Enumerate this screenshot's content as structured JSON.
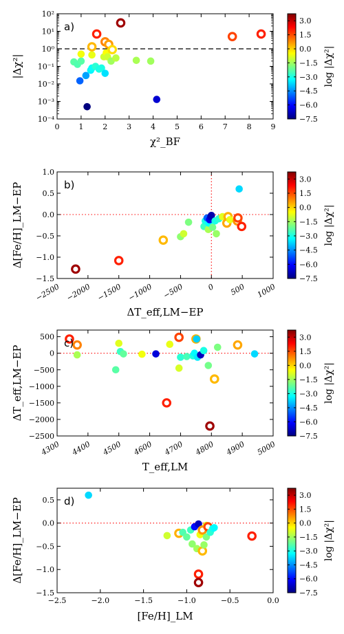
{
  "colorbar": {
    "ticks": [
      "3.0",
      "1.5",
      "0.0",
      "−1.5",
      "−3.0",
      "−4.5",
      "−6.0",
      "−7.5"
    ],
    "range": [
      -7.5,
      3.75
    ],
    "colors": [
      "#00007f",
      "#0000ff",
      "#007fff",
      "#00ffff",
      "#7fff7f",
      "#ffff00",
      "#ff7f00",
      "#ff0000",
      "#7f0000"
    ]
  },
  "chart_data": [
    {
      "type": "scatter",
      "panel_label": "a)",
      "xlabel": "χ²_BF",
      "ylabel": "|Δχ²|",
      "cbar_label": "log |Δχ²|",
      "xlim": [
        0,
        9
      ],
      "ylim_log10": [
        -4,
        2
      ],
      "yscale": "log",
      "xticks": [
        "0",
        "1",
        "2",
        "3",
        "4",
        "5",
        "6",
        "7",
        "8",
        "9"
      ],
      "yticks": [
        "10⁻⁴",
        "10⁻³",
        "10⁻²",
        "10⁻¹",
        "10⁰",
        "10¹",
        "10²"
      ],
      "reference_lines": [
        {
          "orientation": "horizontal",
          "value": 1,
          "style": "dashed",
          "color": "#000000"
        }
      ],
      "points": [
        {
          "x": 0.7,
          "y": 0.18,
          "c": -2.3,
          "ring": false
        },
        {
          "x": 0.85,
          "y": 0.13,
          "c": -2.4,
          "ring": false
        },
        {
          "x": 0.95,
          "y": 0.015,
          "c": -5.0,
          "ring": false
        },
        {
          "x": 1.0,
          "y": 0.2,
          "c": -2.3,
          "ring": false
        },
        {
          "x": 1.0,
          "y": 0.5,
          "c": -0.6,
          "ring": false
        },
        {
          "x": 1.2,
          "y": 0.03,
          "c": -4.3,
          "ring": false
        },
        {
          "x": 1.25,
          "y": 0.0005,
          "c": -7.5,
          "ring": false
        },
        {
          "x": 1.4,
          "y": 0.06,
          "c": -3.4,
          "ring": false
        },
        {
          "x": 1.45,
          "y": 0.08,
          "c": -3.2,
          "ring": false
        },
        {
          "x": 1.45,
          "y": 0.45,
          "c": -0.7,
          "ring": false
        },
        {
          "x": 1.45,
          "y": 1.3,
          "c": 0.3,
          "ring": true
        },
        {
          "x": 1.6,
          "y": 0.1,
          "c": -2.8,
          "ring": false
        },
        {
          "x": 1.65,
          "y": 7.0,
          "c": 2.0,
          "ring": true
        },
        {
          "x": 1.75,
          "y": 0.07,
          "c": -3.0,
          "ring": false
        },
        {
          "x": 1.85,
          "y": 0.08,
          "c": -3.0,
          "ring": false
        },
        {
          "x": 1.95,
          "y": 0.35,
          "c": -1.0,
          "ring": false
        },
        {
          "x": 2.0,
          "y": 0.04,
          "c": -3.6,
          "ring": false
        },
        {
          "x": 2.0,
          "y": 2.5,
          "c": 0.9,
          "ring": true
        },
        {
          "x": 2.05,
          "y": 0.6,
          "c": -0.5,
          "ring": false
        },
        {
          "x": 2.1,
          "y": 0.35,
          "c": -1.0,
          "ring": false
        },
        {
          "x": 2.15,
          "y": 1.8,
          "c": 0.6,
          "ring": true
        },
        {
          "x": 2.25,
          "y": 0.2,
          "c": -1.5,
          "ring": false
        },
        {
          "x": 2.3,
          "y": 0.9,
          "c": -0.1,
          "ring": true
        },
        {
          "x": 2.45,
          "y": 0.3,
          "c": -1.2,
          "ring": false
        },
        {
          "x": 2.65,
          "y": 30.0,
          "c": 3.4,
          "ring": true
        },
        {
          "x": 3.3,
          "y": 0.22,
          "c": -1.4,
          "ring": false
        },
        {
          "x": 3.9,
          "y": 0.2,
          "c": -1.5,
          "ring": false
        },
        {
          "x": 4.15,
          "y": 0.0013,
          "c": -6.6,
          "ring": false
        },
        {
          "x": 7.3,
          "y": 5.0,
          "c": 1.6,
          "ring": true
        },
        {
          "x": 8.5,
          "y": 7.0,
          "c": 2.0,
          "ring": true
        }
      ]
    },
    {
      "type": "scatter",
      "panel_label": "b)",
      "xlabel": "ΔT_eff,LM−EP",
      "ylabel": "Δ[Fe/H]_LM−EP",
      "cbar_label": "log |Δχ²|",
      "xlim": [
        -2500,
        1000
      ],
      "ylim": [
        -1.5,
        1.0
      ],
      "xticks": [
        "−2500",
        "−2000",
        "−1500",
        "−1000",
        "−500",
        "0",
        "500",
        "1000"
      ],
      "yticks": [
        "−1.5",
        "−1.0",
        "−0.5",
        "0.0",
        "0.5",
        "1.0"
      ],
      "reference_lines": [
        {
          "orientation": "horizontal",
          "value": 0,
          "style": "dotted",
          "color": "#ff0000"
        },
        {
          "orientation": "vertical",
          "value": 0,
          "style": "dotted",
          "color": "#ff0000"
        }
      ],
      "points": [
        {
          "x": -2200,
          "y": -1.28,
          "c": 3.4,
          "ring": true
        },
        {
          "x": -1500,
          "y": -1.08,
          "c": 2.0,
          "ring": true
        },
        {
          "x": -780,
          "y": -0.6,
          "c": 0.3,
          "ring": true
        },
        {
          "x": -500,
          "y": -0.52,
          "c": -1.7,
          "ring": false
        },
        {
          "x": -450,
          "y": -0.45,
          "c": -1.0,
          "ring": false
        },
        {
          "x": -370,
          "y": -0.18,
          "c": -1.9,
          "ring": false
        },
        {
          "x": -120,
          "y": -0.28,
          "c": -2.6,
          "ring": false
        },
        {
          "x": -100,
          "y": -0.15,
          "c": -3.0,
          "ring": false
        },
        {
          "x": -70,
          "y": -0.08,
          "c": -5.0,
          "ring": false
        },
        {
          "x": -50,
          "y": -0.35,
          "c": -1.4,
          "ring": false
        },
        {
          "x": -40,
          "y": -0.2,
          "c": -3.3,
          "ring": false
        },
        {
          "x": -30,
          "y": -0.12,
          "c": -6.3,
          "ring": false
        },
        {
          "x": -10,
          "y": -0.05,
          "c": -6.8,
          "ring": false
        },
        {
          "x": 0,
          "y": -0.02,
          "c": -7.0,
          "ring": false
        },
        {
          "x": 20,
          "y": -0.3,
          "c": -2.0,
          "ring": false
        },
        {
          "x": 60,
          "y": -0.15,
          "c": -3.0,
          "ring": false
        },
        {
          "x": 80,
          "y": -0.45,
          "c": -1.6,
          "ring": false
        },
        {
          "x": 120,
          "y": -0.1,
          "c": -2.8,
          "ring": false
        },
        {
          "x": 180,
          "y": -0.05,
          "c": -0.8,
          "ring": false
        },
        {
          "x": 250,
          "y": -0.2,
          "c": 0.5,
          "ring": true
        },
        {
          "x": 270,
          "y": -0.05,
          "c": 0.4,
          "ring": true
        },
        {
          "x": 300,
          "y": -0.12,
          "c": -0.7,
          "ring": false
        },
        {
          "x": 420,
          "y": -0.15,
          "c": 0.7,
          "ring": true
        },
        {
          "x": 430,
          "y": -0.08,
          "c": 1.6,
          "ring": true
        },
        {
          "x": 450,
          "y": 0.6,
          "c": -3.7,
          "ring": false
        },
        {
          "x": 490,
          "y": -0.28,
          "c": 2.0,
          "ring": true
        }
      ]
    },
    {
      "type": "scatter",
      "panel_label": "c)",
      "xlabel": "T_eff,LM",
      "ylabel": "ΔT_eff,LM−EP",
      "cbar_label": "log |Δχ²|",
      "xlim": [
        4300,
        5000
      ],
      "ylim": [
        -2500,
        700
      ],
      "xticks": [
        "4300",
        "4400",
        "4500",
        "4600",
        "4700",
        "4800",
        "4900",
        "5000"
      ],
      "yticks": [
        "−2500",
        "−2000",
        "−1500",
        "−1000",
        "−500",
        "0",
        "500"
      ],
      "reference_lines": [
        {
          "orientation": "horizontal",
          "value": 0,
          "style": "dotted",
          "color": "#ff0000"
        }
      ],
      "points": [
        {
          "x": 4340,
          "y": 430,
          "c": 2.0,
          "ring": true
        },
        {
          "x": 4365,
          "y": 250,
          "c": 0.9,
          "ring": true
        },
        {
          "x": 4365,
          "y": -50,
          "c": -1.4,
          "ring": false
        },
        {
          "x": 4490,
          "y": -500,
          "c": -2.3,
          "ring": false
        },
        {
          "x": 4500,
          "y": 300,
          "c": -0.8,
          "ring": false
        },
        {
          "x": 4505,
          "y": 50,
          "c": -2.6,
          "ring": false
        },
        {
          "x": 4515,
          "y": -20,
          "c": -2.2,
          "ring": false
        },
        {
          "x": 4575,
          "y": -30,
          "c": -0.6,
          "ring": false
        },
        {
          "x": 4620,
          "y": -20,
          "c": -6.5,
          "ring": false
        },
        {
          "x": 4655,
          "y": -1500,
          "c": 2.0,
          "ring": true
        },
        {
          "x": 4665,
          "y": 270,
          "c": -0.7,
          "ring": false
        },
        {
          "x": 4695,
          "y": 480,
          "c": 1.6,
          "ring": true
        },
        {
          "x": 4695,
          "y": -450,
          "c": -0.9,
          "ring": false
        },
        {
          "x": 4700,
          "y": -120,
          "c": -2.8,
          "ring": false
        },
        {
          "x": 4720,
          "y": -100,
          "c": -2.5,
          "ring": false
        },
        {
          "x": 4740,
          "y": -80,
          "c": -2.9,
          "ring": false
        },
        {
          "x": 4745,
          "y": 0,
          "c": -3.3,
          "ring": false
        },
        {
          "x": 4750,
          "y": 430,
          "c": 0.4,
          "ring": true
        },
        {
          "x": 4752,
          "y": 430,
          "c": -3.8,
          "ring": false
        },
        {
          "x": 4755,
          "y": -120,
          "c": -3.5,
          "ring": false
        },
        {
          "x": 4765,
          "y": -50,
          "c": -6.8,
          "ring": false
        },
        {
          "x": 4775,
          "y": 80,
          "c": -3.0,
          "ring": false
        },
        {
          "x": 4790,
          "y": -370,
          "c": -2.0,
          "ring": false
        },
        {
          "x": 4795,
          "y": -2200,
          "c": 3.4,
          "ring": true
        },
        {
          "x": 4810,
          "y": -780,
          "c": 0.3,
          "ring": true
        },
        {
          "x": 4820,
          "y": 180,
          "c": -1.9,
          "ring": false
        },
        {
          "x": 4885,
          "y": 250,
          "c": 0.5,
          "ring": true
        },
        {
          "x": 4940,
          "y": -20,
          "c": -3.7,
          "ring": false
        }
      ]
    },
    {
      "type": "scatter",
      "panel_label": "d)",
      "xlabel": "[Fe/H]_LM",
      "ylabel": "Δ[Fe/H]_LM−EP",
      "cbar_label": "log |Δχ²|",
      "xlim": [
        -2.5,
        0.25
      ],
      "ylim": [
        -1.5,
        0.75
      ],
      "xticks": [
        "−2.5",
        "−2.0",
        "−1.5",
        "−1.0",
        "−0.5",
        "0.0"
      ],
      "yticks": [
        "−1.5",
        "−1.0",
        "−0.5",
        "0.0",
        "0.5"
      ],
      "reference_lines": [
        {
          "orientation": "horizontal",
          "value": 0,
          "style": "dotted",
          "color": "#ff0000"
        }
      ],
      "points": [
        {
          "x": -2.1,
          "y": 0.6,
          "c": -3.7,
          "ring": false
        },
        {
          "x": -1.1,
          "y": -0.27,
          "c": -1.0,
          "ring": false
        },
        {
          "x": -0.95,
          "y": -0.22,
          "c": 0.4,
          "ring": true
        },
        {
          "x": -0.9,
          "y": -0.2,
          "c": -2.4,
          "ring": false
        },
        {
          "x": -0.85,
          "y": -0.3,
          "c": -2.2,
          "ring": false
        },
        {
          "x": -0.8,
          "y": -0.15,
          "c": -2.6,
          "ring": false
        },
        {
          "x": -0.78,
          "y": -0.45,
          "c": -1.7,
          "ring": false
        },
        {
          "x": -0.75,
          "y": -0.08,
          "c": -6.0,
          "ring": false
        },
        {
          "x": -0.72,
          "y": -0.55,
          "c": -1.5,
          "ring": false
        },
        {
          "x": -0.7,
          "y": -0.02,
          "c": -6.8,
          "ring": false
        },
        {
          "x": -0.7,
          "y": -1.1,
          "c": 2.0,
          "ring": true
        },
        {
          "x": -0.7,
          "y": -1.28,
          "c": 3.4,
          "ring": true
        },
        {
          "x": -0.68,
          "y": -0.25,
          "c": -0.6,
          "ring": false
        },
        {
          "x": -0.65,
          "y": -0.6,
          "c": 0.3,
          "ring": true
        },
        {
          "x": -0.65,
          "y": -0.15,
          "c": 0.7,
          "ring": true
        },
        {
          "x": -0.63,
          "y": -0.47,
          "c": -1.6,
          "ring": false
        },
        {
          "x": -0.6,
          "y": -0.3,
          "c": -1.9,
          "ring": false
        },
        {
          "x": -0.6,
          "y": -0.05,
          "c": -0.8,
          "ring": false
        },
        {
          "x": -0.58,
          "y": -0.08,
          "c": 1.6,
          "ring": true
        },
        {
          "x": -0.55,
          "y": -0.2,
          "c": -2.8,
          "ring": false
        },
        {
          "x": -0.52,
          "y": -0.12,
          "c": -3.0,
          "ring": false
        },
        {
          "x": -0.5,
          "y": -0.1,
          "c": -3.3,
          "ring": false
        },
        {
          "x": -0.02,
          "y": -0.28,
          "c": 2.0,
          "ring": true
        }
      ]
    }
  ]
}
